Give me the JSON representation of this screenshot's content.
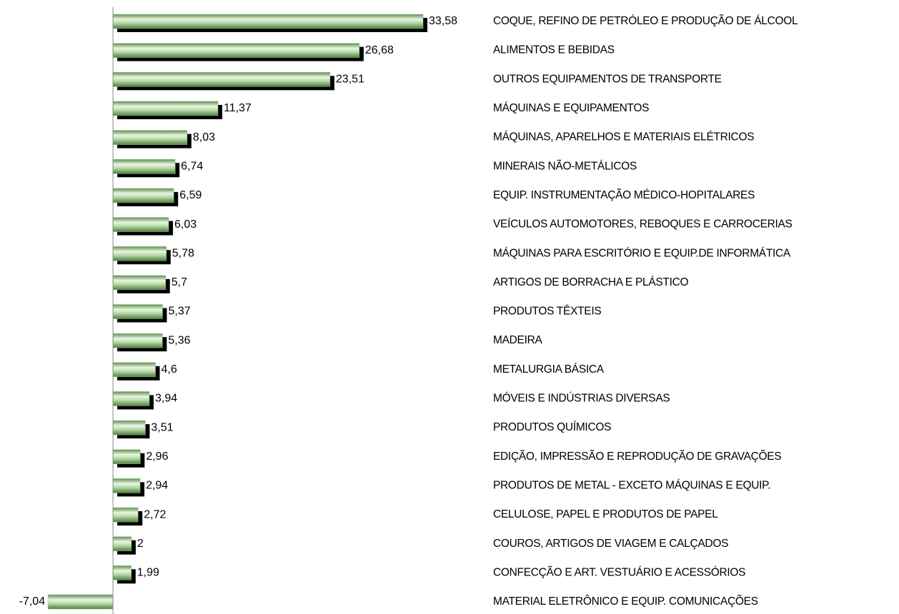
{
  "chart_data": {
    "type": "barh",
    "categories": [
      "COQUE, REFINO DE PETRÓLEO E PRODUÇÃO DE ÁLCOOL",
      "ALIMENTOS E BEBIDAS",
      "OUTROS EQUIPAMENTOS DE TRANSPORTE",
      "MÁQUINAS E EQUIPAMENTOS",
      "MÁQUINAS, APARELHOS E MATERIAIS ELÉTRICOS",
      "MINERAIS NÃO-METÁLICOS",
      "EQUIP. INSTRUMENTAÇÃO MÉDICO-HOPITALARES",
      "VEÍCULOS AUTOMOTORES, REBOQUES E CARROCERIAS",
      "MÁQUINAS PARA ESCRITÓRIO E EQUIP.DE INFORMÁTICA",
      "ARTIGOS DE BORRACHA E PLÁSTICO",
      "PRODUTOS TÊXTEIS",
      "MADEIRA",
      "METALURGIA BÁSICA",
      "MÓVEIS E INDÚSTRIAS DIVERSAS",
      "PRODUTOS QUÍMICOS",
      "EDIÇÃO, IMPRESSÃO E REPRODUÇÃO DE GRAVAÇÕES",
      "PRODUTOS DE METAL - EXCETO MÁQUINAS E EQUIP.",
      "CELULOSE, PAPEL E PRODUTOS DE PAPEL",
      "COUROS, ARTIGOS DE VIAGEM E CALÇADOS",
      "CONFECÇÃO E ART. VESTUÁRIO E ACESSÓRIOS",
      "MATERIAL ELETRÔNICO E EQUIP. COMUNICAÇÕES"
    ],
    "values": [
      33.58,
      26.68,
      23.51,
      11.37,
      8.03,
      6.74,
      6.59,
      6.03,
      5.78,
      5.7,
      5.37,
      5.36,
      4.6,
      3.94,
      3.51,
      2.96,
      2.94,
      2.72,
      2,
      1.99,
      -7.04
    ],
    "value_labels": [
      "33,58",
      "26,68",
      "23,51",
      "11,37",
      "8,03",
      "6,74",
      "6,59",
      "6,03",
      "5,78",
      "5,7",
      "5,37",
      "5,36",
      "4,6",
      "3,94",
      "3,51",
      "2,96",
      "2,94",
      "2,72",
      "2",
      "1,99",
      "-7,04"
    ],
    "color": "#8fc07f",
    "xlim": [
      -12,
      40
    ]
  }
}
